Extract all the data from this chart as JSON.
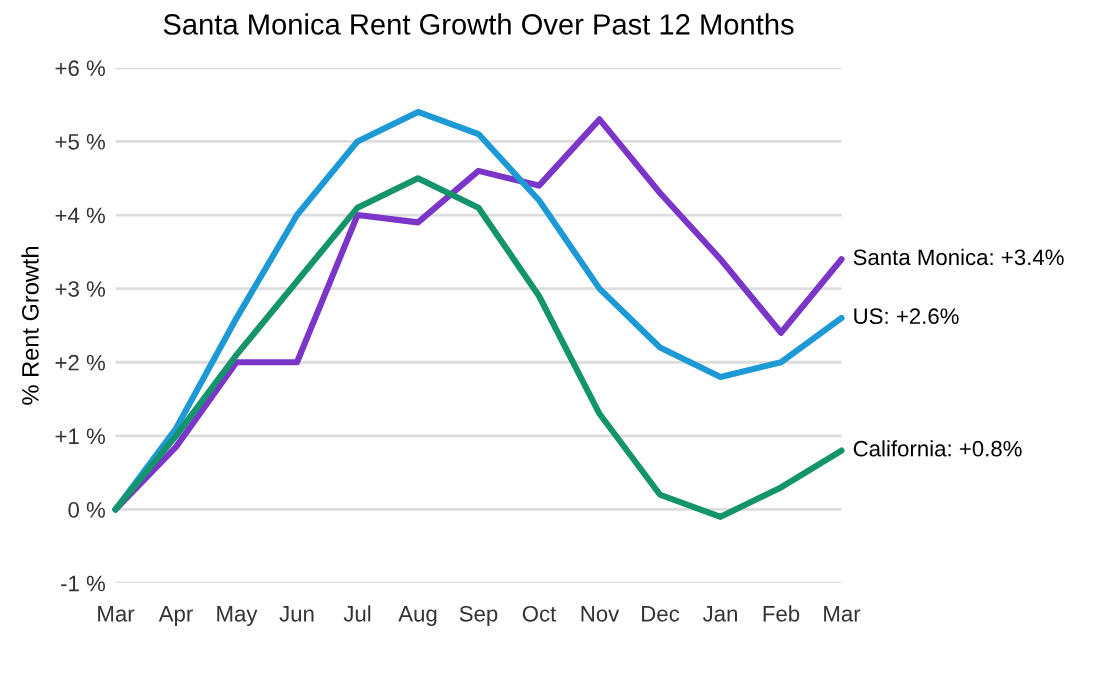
{
  "chart_data": {
    "type": "line",
    "title": "Santa Monica Rent Growth Over Past 12 Months",
    "ylabel": "% Rent Growth",
    "categories": [
      "Mar",
      "Apr",
      "May",
      "Jun",
      "Jul",
      "Aug",
      "Sep",
      "Oct",
      "Nov",
      "Dec",
      "Jan",
      "Feb",
      "Mar"
    ],
    "series": [
      {
        "name": "Santa Monica: +3.4%",
        "color": "#7b35c8",
        "values": [
          0,
          0.85,
          2.0,
          2.0,
          4.0,
          3.9,
          4.6,
          4.4,
          5.3,
          4.3,
          3.4,
          2.4,
          3.4
        ]
      },
      {
        "name": "US: +2.6%",
        "color": "#1d9ad6",
        "values": [
          0,
          1.1,
          2.6,
          4.0,
          5.0,
          5.4,
          5.1,
          4.2,
          3.0,
          2.2,
          1.8,
          2.0,
          2.6
        ]
      },
      {
        "name": "California: +0.8%",
        "color": "#13946b",
        "values": [
          0,
          1.0,
          2.1,
          3.1,
          4.1,
          4.5,
          4.1,
          2.9,
          1.3,
          0.2,
          -0.1,
          0.3,
          0.8
        ]
      }
    ],
    "ylim": [
      -1,
      6
    ],
    "yticks": [
      {
        "value": -1,
        "label": "-1 %"
      },
      {
        "value": 0,
        "label": "0 %"
      },
      {
        "value": 1,
        "label": "+1 %"
      },
      {
        "value": 2,
        "label": "+2 %"
      },
      {
        "value": 3,
        "label": "+3 %"
      },
      {
        "value": 4,
        "label": "+4 %"
      },
      {
        "value": 5,
        "label": "+5 %"
      },
      {
        "value": 6,
        "label": "+6 %"
      }
    ],
    "grid": "y",
    "marker": "none",
    "line_style": "solid",
    "legend": false
  }
}
